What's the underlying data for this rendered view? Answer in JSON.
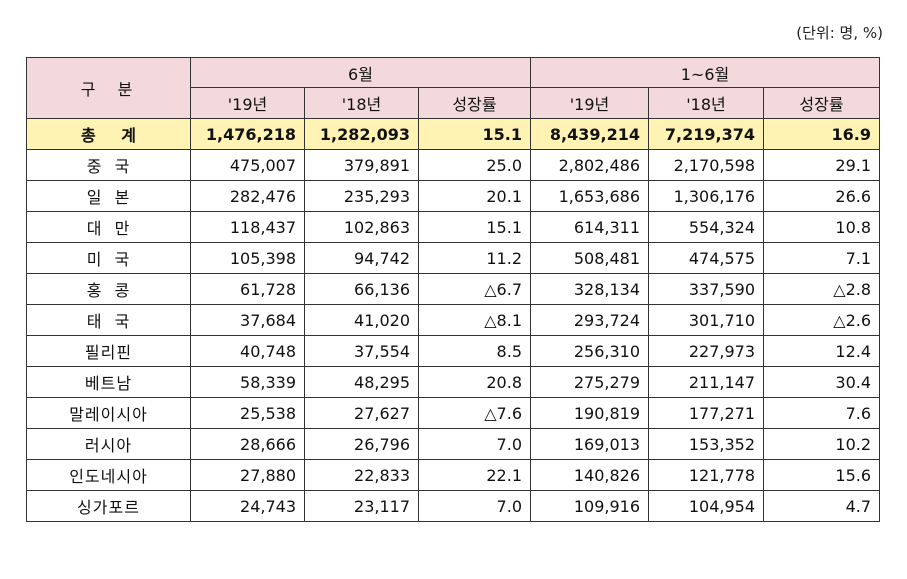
{
  "unit_note": "(단위: 명, %)",
  "header": {
    "category": "구  분",
    "group_month": "6월",
    "group_ytd": "1~6월",
    "col_19": "'19년",
    "col_18": "'18년",
    "col_growth": "성장률"
  },
  "rows": [
    {
      "name": "총 계",
      "m19": "1,476,218",
      "m18": "1,282,093",
      "mg": "15.1",
      "y19": "8,439,214",
      "y18": "7,219,374",
      "yg": "16.9"
    },
    {
      "name": "중  국",
      "m19": "475,007",
      "m18": "379,891",
      "mg": "25.0",
      "y19": "2,802,486",
      "y18": "2,170,598",
      "yg": "29.1"
    },
    {
      "name": "일  본",
      "m19": "282,476",
      "m18": "235,293",
      "mg": "20.1",
      "y19": "1,653,686",
      "y18": "1,306,176",
      "yg": "26.6"
    },
    {
      "name": "대  만",
      "m19": "118,437",
      "m18": "102,863",
      "mg": "15.1",
      "y19": "614,311",
      "y18": "554,324",
      "yg": "10.8"
    },
    {
      "name": "미  국",
      "m19": "105,398",
      "m18": "94,742",
      "mg": "11.2",
      "y19": "508,481",
      "y18": "474,575",
      "yg": "7.1"
    },
    {
      "name": "홍  콩",
      "m19": "61,728",
      "m18": "66,136",
      "mg": "△6.7",
      "y19": "328,134",
      "y18": "337,590",
      "yg": "△2.8"
    },
    {
      "name": "태  국",
      "m19": "37,684",
      "m18": "41,020",
      "mg": "△8.1",
      "y19": "293,724",
      "y18": "301,710",
      "yg": "△2.6"
    },
    {
      "name": "필리핀",
      "m19": "40,748",
      "m18": "37,554",
      "mg": "8.5",
      "y19": "256,310",
      "y18": "227,973",
      "yg": "12.4"
    },
    {
      "name": "베트남",
      "m19": "58,339",
      "m18": "48,295",
      "mg": "20.8",
      "y19": "275,279",
      "y18": "211,147",
      "yg": "30.4"
    },
    {
      "name": "말레이시아",
      "m19": "25,538",
      "m18": "27,627",
      "mg": "△7.6",
      "y19": "190,819",
      "y18": "177,271",
      "yg": "7.6"
    },
    {
      "name": "러시아",
      "m19": "28,666",
      "m18": "26,796",
      "mg": "7.0",
      "y19": "169,013",
      "y18": "153,352",
      "yg": "10.2"
    },
    {
      "name": "인도네시아",
      "m19": "27,880",
      "m18": "22,833",
      "mg": "22.1",
      "y19": "140,826",
      "y18": "121,778",
      "yg": "15.6"
    },
    {
      "name": "싱가포르",
      "m19": "24,743",
      "m18": "23,117",
      "mg": "7.0",
      "y19": "109,916",
      "y18": "104,954",
      "yg": "4.7"
    }
  ]
}
